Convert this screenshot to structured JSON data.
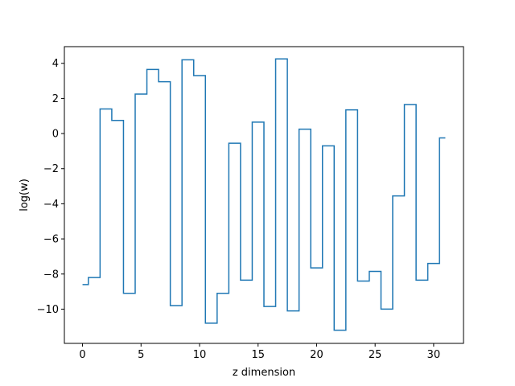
{
  "chart_data": {
    "type": "line",
    "drawstyle": "steps-mid",
    "title": "",
    "xlabel": "z dimension",
    "ylabel": "log(w)",
    "xlim": [
      -1.55,
      32.55
    ],
    "ylim": [
      -11.95,
      4.95
    ],
    "xticks": [
      0,
      5,
      10,
      15,
      20,
      25,
      30
    ],
    "yticks": [
      -10,
      -8,
      -6,
      -4,
      -2,
      0,
      2,
      4
    ],
    "grid": false,
    "legend": "none",
    "colors": {
      "line": "#1f77b4",
      "axes": "#000000",
      "background": "#ffffff"
    },
    "series": [
      {
        "x": [
          0,
          1,
          2,
          3,
          4,
          5,
          6,
          7,
          8,
          9,
          10,
          11,
          12,
          13,
          14,
          15,
          16,
          17,
          18,
          19,
          20,
          21,
          22,
          23,
          24,
          25,
          26,
          27,
          28,
          29,
          30,
          31
        ],
        "values": [
          -8.6,
          -8.2,
          1.4,
          0.75,
          -9.1,
          2.25,
          3.65,
          2.95,
          -9.8,
          4.2,
          3.3,
          -10.8,
          -9.1,
          -0.55,
          -8.35,
          0.65,
          -9.85,
          4.25,
          -10.1,
          0.25,
          -7.65,
          -0.7,
          -11.2,
          1.35,
          -8.4,
          -7.85,
          -10.0,
          -3.55,
          1.65,
          -8.35,
          -7.4,
          -0.25
        ]
      }
    ]
  }
}
